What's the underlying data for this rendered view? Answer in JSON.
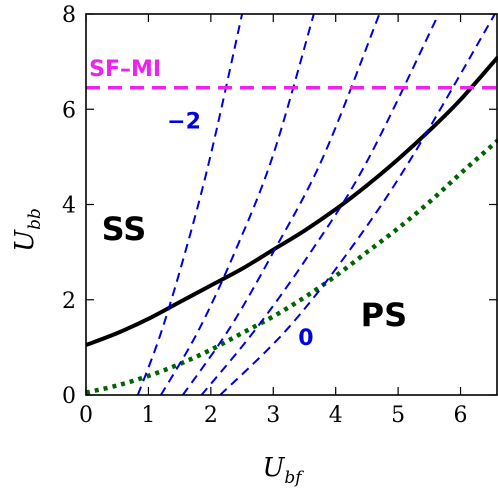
{
  "chart_data": {
    "type": "line",
    "xlabel": {
      "main": "U",
      "sub": "bf"
    },
    "ylabel": {
      "main": "U",
      "sub": "bb"
    },
    "xlim": [
      0,
      6.6
    ],
    "ylim": [
      0,
      8
    ],
    "x_ticks": [
      0,
      1,
      2,
      3,
      4,
      5,
      6
    ],
    "y_ticks": [
      0,
      2,
      4,
      6,
      8
    ],
    "grid": false,
    "colors": {
      "solid": "#000000",
      "dotted": "#006400",
      "dashed": "#0000dd",
      "sfmi": "#ee22ee"
    },
    "series": [
      {
        "style": "solid",
        "x": [
          0,
          0.5,
          1,
          1.5,
          2,
          2.5,
          3,
          3.5,
          4,
          4.5,
          5,
          5.5,
          6,
          6.6
        ],
        "y": [
          1.05,
          1.3,
          1.6,
          1.95,
          2.3,
          2.65,
          3.05,
          3.45,
          3.9,
          4.4,
          4.95,
          5.55,
          6.2,
          7.1
        ]
      },
      {
        "style": "dotted",
        "x": [
          0,
          0.5,
          1,
          1.5,
          2,
          2.5,
          3,
          3.5,
          4,
          4.5,
          5,
          5.5,
          6,
          6.6
        ],
        "y": [
          0.05,
          0.2,
          0.4,
          0.65,
          0.95,
          1.3,
          1.65,
          2.05,
          2.5,
          3.0,
          3.5,
          4.05,
          4.65,
          5.35
        ]
      },
      {
        "style": "dashed",
        "x": [
          0.83,
          1.2,
          1.6,
          2.0,
          2.5
        ],
        "y": [
          0,
          1.3,
          3.05,
          5.05,
          8
        ]
      },
      {
        "style": "dashed",
        "x": [
          1.2,
          1.8,
          2.4,
          3.0,
          3.65
        ],
        "y": [
          0,
          1.35,
          3.05,
          5.05,
          8
        ]
      },
      {
        "style": "dashed",
        "x": [
          1.55,
          2.3,
          3.0,
          3.8,
          4.7
        ],
        "y": [
          0,
          1.4,
          3.0,
          5.0,
          8
        ]
      },
      {
        "style": "dashed",
        "x": [
          1.85,
          2.7,
          3.6,
          4.5,
          5.65
        ],
        "y": [
          0,
          1.35,
          3.0,
          4.9,
          8
        ]
      },
      {
        "style": "dashed",
        "x": [
          2.15,
          3.2,
          4.2,
          5.2,
          6.55
        ],
        "y": [
          0,
          1.35,
          3.0,
          4.95,
          8
        ]
      },
      {
        "style": "sfmi",
        "x": [
          0,
          6.6
        ],
        "y": [
          6.45,
          6.45
        ]
      }
    ],
    "annotations": [
      {
        "text": "SF–MI",
        "x": 0.05,
        "y": 6.7,
        "color": "#ee22ee",
        "cls": "sfmi"
      },
      {
        "text": "−2",
        "x": 1.3,
        "y": 5.6,
        "color": "#0000dd",
        "cls": "curve-label"
      },
      {
        "text": "0",
        "x": 3.4,
        "y": 1.05,
        "color": "#0000dd",
        "cls": "curve-label"
      },
      {
        "text": "SS",
        "x": 0.25,
        "y": 3.25,
        "color": "#000000",
        "cls": "region"
      },
      {
        "text": "PS",
        "x": 4.4,
        "y": 1.45,
        "color": "#000000",
        "cls": "region"
      }
    ]
  }
}
